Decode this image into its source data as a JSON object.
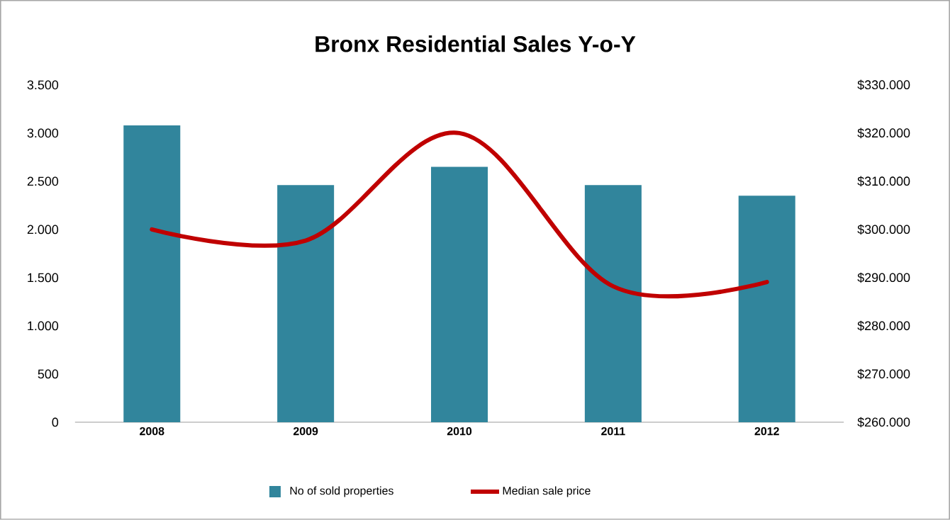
{
  "chart_data": {
    "type": "bar",
    "title": "Bronx Residential Sales Y-o-Y",
    "categories": [
      "2008",
      "2009",
      "2010",
      "2011",
      "2012"
    ],
    "series": [
      {
        "name": "No of sold properties",
        "color": "#31859c",
        "values": [
          3080,
          2460,
          2650,
          2460,
          2350
        ]
      },
      {
        "name": "Median sale price",
        "type": "line",
        "axis": "y2",
        "color": "#c00000",
        "values": [
          300000,
          297700,
          320000,
          288200,
          289100
        ]
      }
    ],
    "ylim": [
      0,
      3500
    ],
    "yticks": [
      0,
      {
        "value": 500,
        "label": "500"
      },
      {
        "value": 1000,
        "label": "1.000"
      },
      {
        "value": 1500,
        "label": "1.500"
      },
      {
        "value": 2000,
        "label": "2.000"
      },
      {
        "value": 2500,
        "label": "2.500"
      },
      {
        "value": 3000,
        "label": "3.000"
      },
      {
        "value": 3500,
        "label": "3.500"
      }
    ],
    "y2lim": [
      260000,
      330000
    ],
    "y2ticks": [
      {
        "value": 260000,
        "label": "$260.000"
      },
      {
        "value": 270000,
        "label": "$270.000"
      },
      {
        "value": 280000,
        "label": "$280.000"
      },
      {
        "value": 290000,
        "label": "$290.000"
      },
      {
        "value": 300000,
        "label": "$300.000"
      },
      {
        "value": 310000,
        "label": "$310.000"
      },
      {
        "value": 320000,
        "label": "$320.000"
      },
      {
        "value": 330000,
        "label": "$330.000"
      }
    ],
    "legend": "bottom",
    "grid": false
  }
}
